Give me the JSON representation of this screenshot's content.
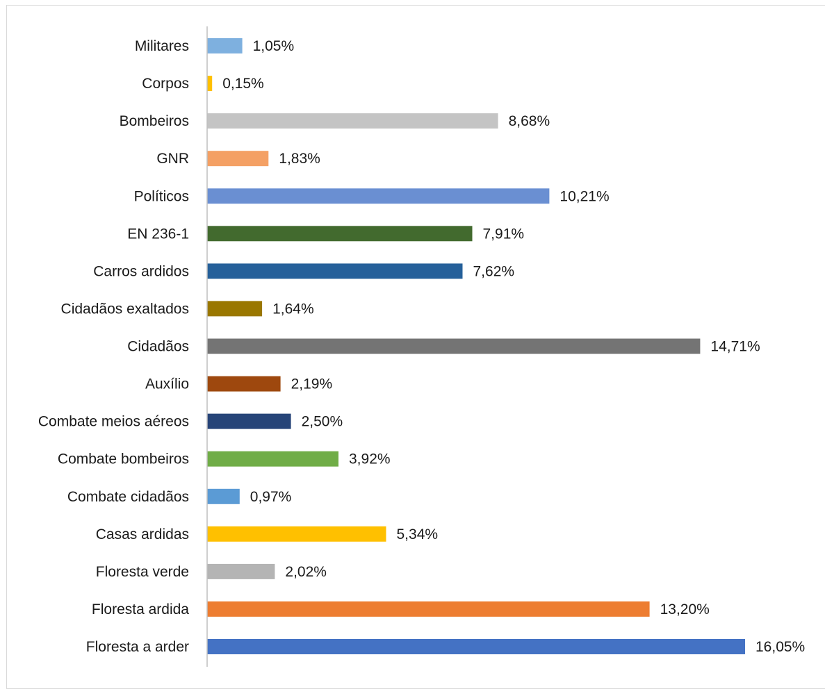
{
  "chart_data": {
    "type": "bar",
    "orientation": "horizontal",
    "title": "",
    "xlabel": "",
    "ylabel": "",
    "xlim": [
      0,
      16.05
    ],
    "grid": false,
    "legend": "none",
    "categories": [
      "Militares",
      "Corpos",
      "Bombeiros",
      "GNR",
      "Políticos",
      "EN 236-1",
      "Carros ardidos",
      "Cidadãos exaltados",
      "Cidadãos",
      "Auxílio",
      "Combate meios aéreos",
      "Combate bombeiros",
      "Combate cidadãos",
      "Casas ardidas",
      "Floresta verde",
      "Floresta ardida",
      "Floresta a arder"
    ],
    "values": [
      1.05,
      0.15,
      8.68,
      1.83,
      10.21,
      7.91,
      7.62,
      1.64,
      14.71,
      2.19,
      2.5,
      3.92,
      0.97,
      5.34,
      2.02,
      13.2,
      16.05
    ],
    "data_labels": [
      "1,05%",
      "0,15%",
      "8,68%",
      "1,83%",
      "10,21%",
      "7,91%",
      "7,62%",
      "1,64%",
      "14,71%",
      "2,19%",
      "2,50%",
      "3,92%",
      "0,97%",
      "5,34%",
      "2,02%",
      "13,20%",
      "16,05%"
    ],
    "colors": [
      "#7eb0df",
      "#ffc000",
      "#c4c4c4",
      "#f4a064",
      "#6a8fd2",
      "#426a2e",
      "#25609a",
      "#9a7700",
      "#747474",
      "#9e480e",
      "#264478",
      "#70ad47",
      "#5b9bd5",
      "#ffc000",
      "#b4b4b4",
      "#ed7d31",
      "#4472c4"
    ]
  }
}
